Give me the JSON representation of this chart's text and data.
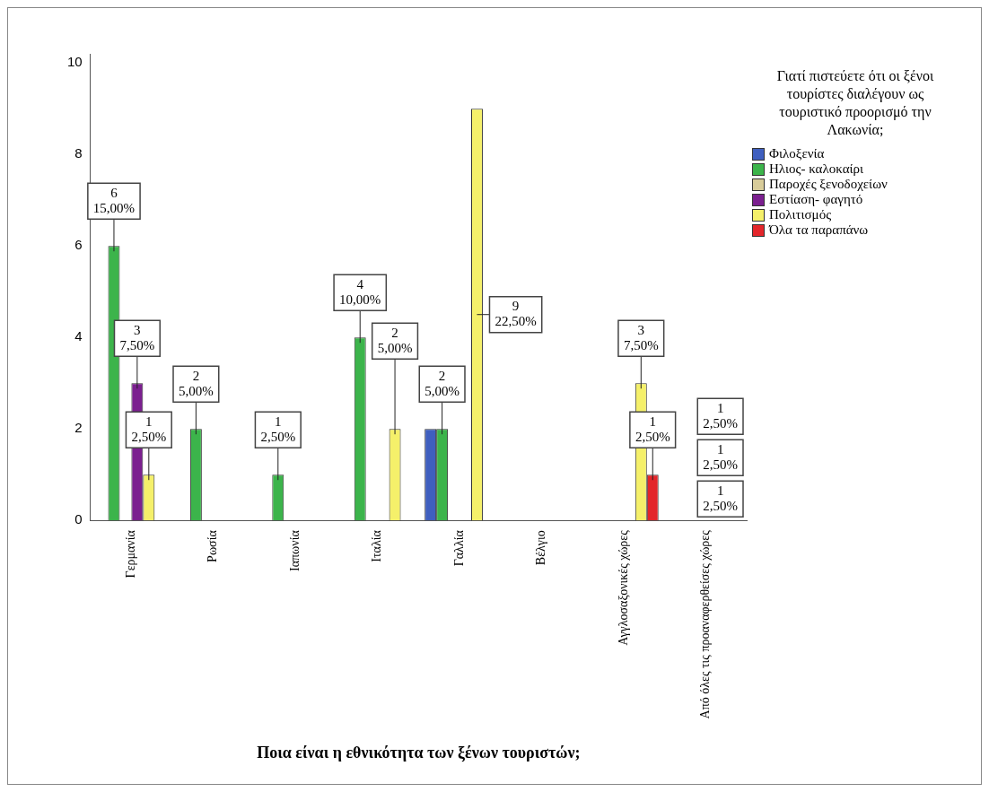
{
  "chart_data": {
    "type": "bar",
    "xlabel": "Ποια είναι η εθνικότητα των ξένων τουριστών;",
    "legend_title": "Γιατί πιστεύετε ότι οι ξένοι τουρίστες διαλέγουν ως τουριστικό προορισμό την Λακωνία;",
    "legend": "right",
    "grid": false,
    "categories": [
      "Γερμανία",
      "Ρωσία",
      "Ιαπωνία",
      "Ιταλία",
      "Γαλλία",
      "Βέλγιο",
      "Αγγλοσαξονικές χώρες",
      "Από όλες τις προαναφερθείσες χώρες"
    ],
    "ylim": [
      0,
      10.2
    ],
    "yticks": [
      0,
      2,
      4,
      6,
      8,
      10
    ],
    "series": [
      {
        "name": "Φιλοξενία",
        "color": "#3f5fbf",
        "values": [
          null,
          null,
          null,
          null,
          2,
          null,
          null,
          null
        ],
        "value_labels": [
          null,
          null,
          null,
          null,
          null,
          null,
          null,
          null
        ]
      },
      {
        "name": "Ηλιος- καλοκαίρι",
        "color": "#3cb44b",
        "values": [
          6,
          2,
          1,
          4,
          2,
          null,
          null,
          null
        ],
        "value_labels": [
          "6\n15,00%",
          "2\n5,00%",
          "1\n2,50%",
          "4\n10,00%",
          "2\n5,00%",
          null,
          null,
          null
        ]
      },
      {
        "name": "Παροχές ξενοδοχείων",
        "color": "#d8cc9a",
        "values": [
          null,
          null,
          null,
          null,
          null,
          null,
          null,
          null
        ],
        "value_labels": [
          null,
          null,
          null,
          null,
          null,
          null,
          null,
          null
        ]
      },
      {
        "name": "Εστίαση- φαγητό",
        "color": "#7b1f8f",
        "values": [
          3,
          null,
          null,
          null,
          null,
          null,
          null,
          null
        ],
        "value_labels": [
          "3\n7,50%",
          null,
          null,
          null,
          null,
          null,
          null,
          null
        ]
      },
      {
        "name": "Πολιτισμός",
        "color": "#f5f06a",
        "values": [
          1,
          null,
          null,
          2,
          9,
          null,
          3,
          null
        ],
        "value_labels": [
          "1\n2,50%",
          null,
          null,
          "2\n5,00%",
          "9\n22,50%",
          null,
          "3\n7,50%",
          null
        ]
      },
      {
        "name": "Όλα τα παραπάνω",
        "color": "#e3262b",
        "values": [
          null,
          null,
          null,
          null,
          null,
          null,
          1,
          null
        ],
        "value_labels": [
          null,
          null,
          null,
          null,
          null,
          null,
          "1\n2,50%",
          null
        ]
      }
    ],
    "annotations": [
      "1\n2,50%",
      "1\n2,50%",
      "1\n2,50%"
    ]
  }
}
